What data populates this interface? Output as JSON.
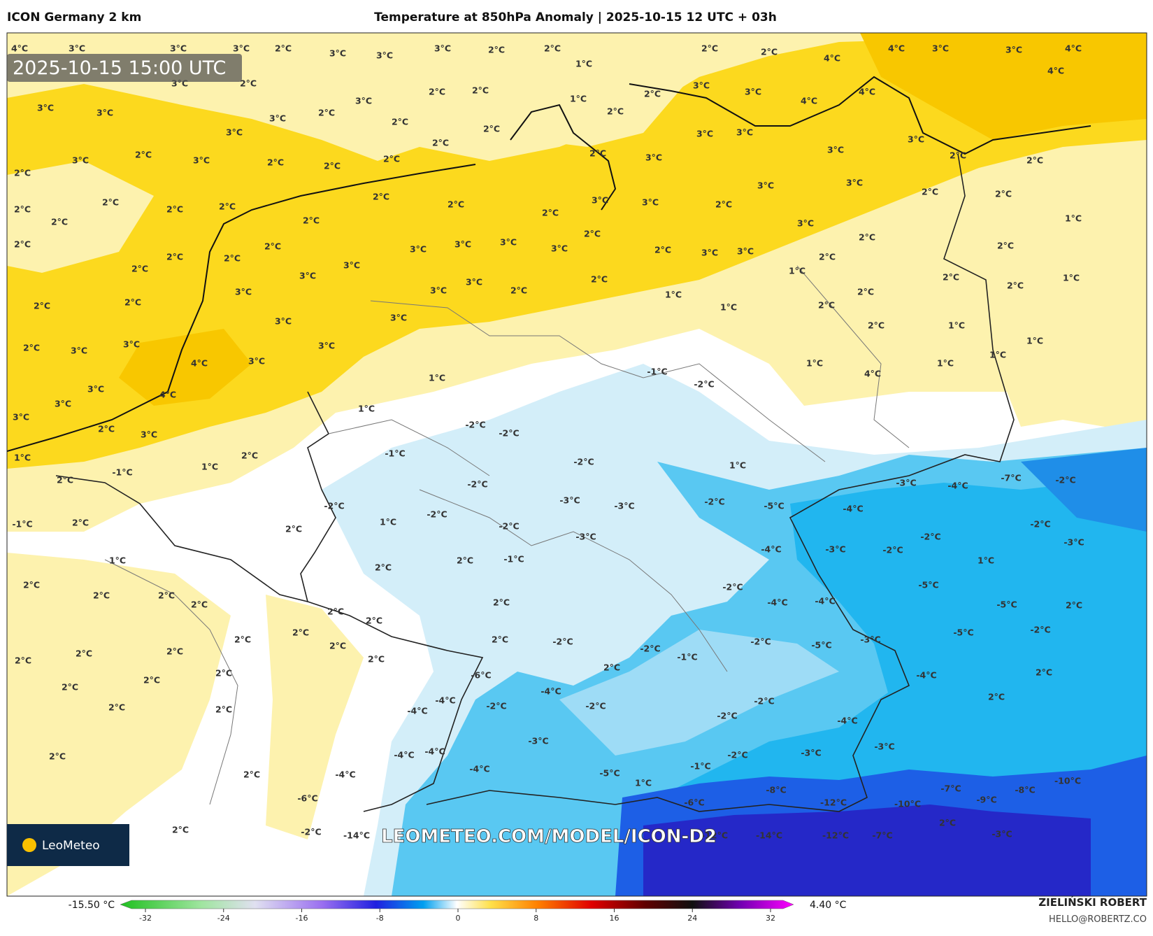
{
  "header": {
    "model": "ICON Germany 2 km",
    "title": "Temperature at 850hPa Anomaly | 2025-10-15 12 UTC + 03h"
  },
  "map": {
    "timestamp": "2025-10-15 15:00 UTC",
    "watermark": "LEOMETEO.COM/MODEL/ICON-D2",
    "logo": "LeoMeteo",
    "labels": [
      "4°C",
      "3°C",
      "3°C",
      "3°C",
      "2°C",
      "3°C",
      "3°C",
      "3°C",
      "2°C",
      "2°C",
      "1°C",
      "1°C",
      "2°C",
      "2°C",
      "2°C",
      "4°C",
      "4°C",
      "3°C",
      "3°C",
      "4°C",
      "4°C",
      "3°C",
      "3°C",
      "3°C",
      "2°C",
      "3°C",
      "2°C",
      "3°C",
      "2°C",
      "2°C",
      "2°C",
      "2°C",
      "2°C",
      "2°C",
      "3°C",
      "3°C",
      "4°C",
      "4°C",
      "3°C",
      "2°C",
      "3°C",
      "2°C",
      "2°C",
      "2°C",
      "3°C",
      "2°C",
      "2°C",
      "2°C",
      "2°C",
      "2°C",
      "2°C",
      "2°C",
      "2°C",
      "2°C",
      "2°C",
      "3°C",
      "3°C",
      "3°C",
      "3°C",
      "3°C",
      "2°C",
      "2°C",
      "2°C",
      "3°C",
      "3°C",
      "2°C",
      "3°C",
      "3°C",
      "2°C",
      "2°C",
      "1°C",
      "3°C",
      "2°C",
      "2°C",
      "2°C",
      "2°C",
      "1°C",
      "2°C",
      "1°C",
      "2°C",
      "2°C",
      "2°C",
      "2°C",
      "2°C",
      "2°C",
      "2°C",
      "3°C",
      "3°C",
      "4°C",
      "3°C",
      "3°C",
      "2°C",
      "3°C",
      "3°C",
      "3°C",
      "3°C",
      "3°C",
      "3°C",
      "3°C",
      "3°C",
      "3°C",
      "2°C",
      "2°C",
      "3°C",
      "3°C",
      "3°C",
      "3°C",
      "2°C",
      "2°C",
      "1°C",
      "1°C",
      "2°C",
      "2°C",
      "2°C",
      "1°C",
      "1°C",
      "1°C",
      "1°C",
      "1°C",
      "4°C",
      "3°C",
      "4°C",
      "3°C",
      "3°C",
      "2°C",
      "3°C",
      "1°C",
      "1°C",
      "1°C",
      "-1°C",
      "-2°C",
      "-2°C",
      "-1°C",
      "-2°C",
      "-2°C",
      "1°C",
      "1°C",
      "2°C",
      "2°C",
      "-1°C",
      "-2°C",
      "-3°C",
      "-3°C",
      "-2°C",
      "-5°C",
      "-4°C",
      "-3°C",
      "-4°C",
      "-7°C",
      "-2°C",
      "-2°C",
      "1°C",
      "-2°C",
      "-2°C",
      "2°C",
      "2°C",
      "-1°C",
      "-3°C",
      "-4°C",
      "-3°C",
      "-2°C",
      "-2°C",
      "-2°C",
      "-3°C",
      "1°C",
      "1°C",
      "2°C",
      "2°C",
      "2°C",
      "2°C",
      "2°C",
      "2°C",
      "-1°C",
      "-2°C",
      "-4°C",
      "-4°C",
      "-5°C",
      "-5°C",
      "2°C",
      "2°C",
      "2°C",
      "2°C",
      "2°C",
      "2°C",
      "2°C",
      "2°C",
      "2°C",
      "2°C",
      "2°C",
      "2°C",
      "2°C",
      "-2°C",
      "-2°C",
      "-5°C",
      "-3°C",
      "-5°C",
      "-2°C",
      "-2°C",
      "-1°C",
      "2°C",
      "-6°C",
      "-4°C",
      "2°C",
      "2°C",
      "2°C",
      "2°C",
      "2°C",
      "-4°C",
      "-4°C",
      "-2°C",
      "-4°C",
      "-2°C",
      "-2°C",
      "-2°C",
      "-4°C",
      "2°C",
      "2°C",
      "-4°C",
      "-4°C",
      "-3°C",
      "-2°C",
      "-3°C",
      "-3°C",
      "-1°C",
      "2°C",
      "-4°C",
      "-4°C",
      "-5°C",
      "1°C",
      "-6°C",
      "-6°C",
      "-8°C",
      "-12°C",
      "-10°C",
      "-7°C",
      "-9°C",
      "-8°C",
      "-10°C",
      "2°C",
      "-1°C",
      "2°C",
      "-2°C",
      "-14°C",
      "-12°C",
      "-14°C",
      "-12°C",
      "-7°C",
      "-3°C"
    ]
  },
  "colorbar": {
    "min_label": "-15.50 °C",
    "max_label": "4.40 °C",
    "ticks": [
      -32,
      -24,
      -16,
      -8,
      0,
      8,
      16,
      24,
      32
    ]
  },
  "footer": {
    "author": "ZIELIŃSKI ROBERT",
    "email": "HELLO@ROBERTZ.CO"
  }
}
